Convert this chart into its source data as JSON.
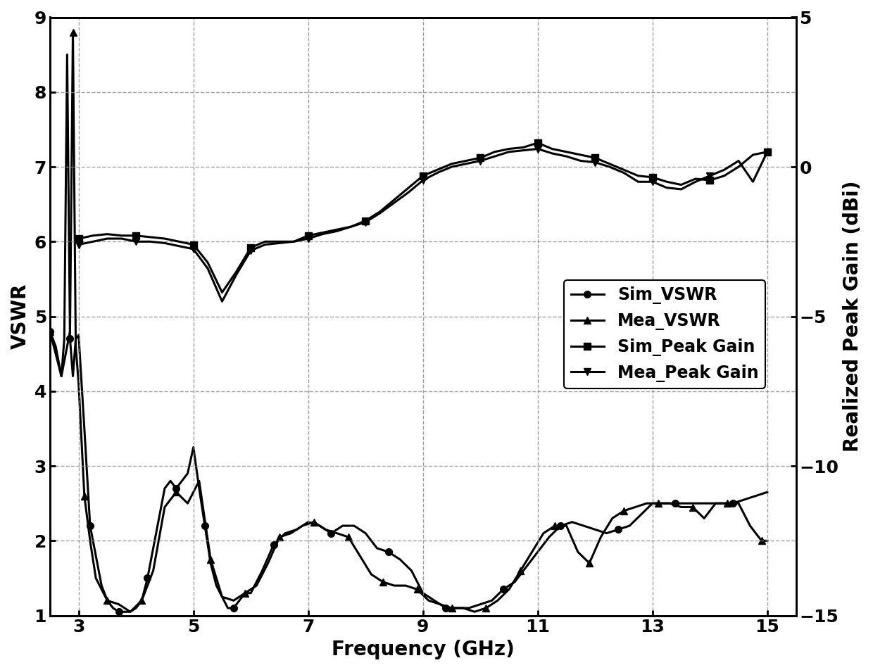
{
  "xlabel": "Frequency (GHz)",
  "ylabel_left": "VSWR",
  "ylabel_right": "Realized Peak Gain (dBi)",
  "xlim": [
    2.5,
    15.5
  ],
  "ylim_left": [
    1,
    9
  ],
  "ylim_right": [
    -15,
    5
  ],
  "yticks_left": [
    1,
    2,
    3,
    4,
    5,
    6,
    7,
    8,
    9
  ],
  "yticks_right": [
    -15,
    -10,
    -5,
    0,
    5
  ],
  "xticks": [
    3,
    5,
    7,
    9,
    11,
    13,
    15
  ],
  "background_color": "#ffffff",
  "line_color": "#000000",
  "linewidth": 2.2,
  "markersize": 7,
  "sim_vswr_freq": [
    2.5,
    2.6,
    2.7,
    2.75,
    2.8,
    2.85,
    2.9,
    2.95,
    3.0,
    3.1,
    3.2,
    3.3,
    3.4,
    3.5,
    3.6,
    3.7,
    3.8,
    3.9,
    4.0,
    4.1,
    4.2,
    4.3,
    4.4,
    4.5,
    4.6,
    4.7,
    4.8,
    4.9,
    5.0,
    5.1,
    5.2,
    5.3,
    5.4,
    5.5,
    5.6,
    5.7,
    5.8,
    5.9,
    6.0,
    6.2,
    6.4,
    6.6,
    6.8,
    7.0,
    7.2,
    7.4,
    7.6,
    7.8,
    8.0,
    8.2,
    8.4,
    8.6,
    8.8,
    9.0,
    9.2,
    9.4,
    9.6,
    9.8,
    10.0,
    10.2,
    10.4,
    10.6,
    10.8,
    11.0,
    11.2,
    11.4,
    11.6,
    11.8,
    12.0,
    12.2,
    12.4,
    12.6,
    12.8,
    13.0,
    13.2,
    13.4,
    13.6,
    13.8,
    14.0,
    14.2,
    14.4,
    14.6,
    14.8,
    15.0
  ],
  "sim_vswr_vals": [
    4.8,
    4.6,
    4.2,
    4.7,
    8.5,
    4.7,
    4.2,
    4.7,
    4.75,
    3.5,
    2.2,
    1.8,
    1.4,
    1.2,
    1.1,
    1.05,
    1.05,
    1.05,
    1.1,
    1.2,
    1.5,
    1.9,
    2.3,
    2.7,
    2.8,
    2.7,
    2.8,
    2.9,
    3.25,
    2.7,
    2.2,
    1.7,
    1.4,
    1.25,
    1.1,
    1.1,
    1.2,
    1.3,
    1.3,
    1.6,
    1.95,
    2.1,
    2.15,
    2.25,
    2.2,
    2.1,
    2.2,
    2.2,
    2.1,
    1.9,
    1.85,
    1.75,
    1.6,
    1.3,
    1.2,
    1.1,
    1.1,
    1.1,
    1.15,
    1.2,
    1.35,
    1.45,
    1.65,
    1.85,
    2.05,
    2.2,
    2.25,
    2.2,
    2.15,
    2.1,
    2.15,
    2.2,
    2.35,
    2.5,
    2.5,
    2.5,
    2.5,
    2.5,
    2.5,
    2.5,
    2.5,
    2.55,
    2.6,
    2.65
  ],
  "mea_vswr_freq": [
    2.5,
    2.7,
    2.85,
    2.9,
    2.95,
    3.0,
    3.1,
    3.2,
    3.3,
    3.5,
    3.7,
    3.9,
    4.1,
    4.3,
    4.5,
    4.7,
    4.9,
    5.1,
    5.3,
    5.5,
    5.7,
    5.9,
    6.1,
    6.3,
    6.5,
    6.7,
    6.9,
    7.1,
    7.3,
    7.5,
    7.7,
    7.9,
    8.1,
    8.3,
    8.5,
    8.7,
    8.9,
    9.1,
    9.3,
    9.5,
    9.7,
    9.9,
    10.1,
    10.3,
    10.5,
    10.7,
    10.9,
    11.1,
    11.3,
    11.5,
    11.7,
    11.9,
    12.1,
    12.3,
    12.5,
    12.7,
    12.9,
    13.1,
    13.3,
    13.5,
    13.7,
    13.9,
    14.1,
    14.3,
    14.5,
    14.7,
    14.9,
    15.0
  ],
  "mea_vswr_vals": [
    4.8,
    4.2,
    4.8,
    8.8,
    4.6,
    4.1,
    2.6,
    2.0,
    1.5,
    1.2,
    1.15,
    1.05,
    1.2,
    1.6,
    2.45,
    2.65,
    2.5,
    2.8,
    1.75,
    1.25,
    1.2,
    1.3,
    1.4,
    1.7,
    2.05,
    2.1,
    2.2,
    2.25,
    2.15,
    2.1,
    2.05,
    1.8,
    1.55,
    1.45,
    1.4,
    1.4,
    1.35,
    1.2,
    1.15,
    1.1,
    1.1,
    1.05,
    1.1,
    1.2,
    1.35,
    1.6,
    1.85,
    2.1,
    2.2,
    2.2,
    1.85,
    1.7,
    2.05,
    2.3,
    2.4,
    2.45,
    2.5,
    2.5,
    2.5,
    2.45,
    2.45,
    2.3,
    2.5,
    2.5,
    2.5,
    2.2,
    2.0,
    2.0
  ],
  "sim_gain_freq": [
    3.0,
    3.25,
    3.5,
    3.75,
    4.0,
    4.25,
    4.5,
    4.75,
    5.0,
    5.25,
    5.5,
    5.75,
    6.0,
    6.25,
    6.5,
    6.75,
    7.0,
    7.25,
    7.5,
    7.75,
    8.0,
    8.25,
    8.5,
    8.75,
    9.0,
    9.25,
    9.5,
    9.75,
    10.0,
    10.25,
    10.5,
    10.75,
    11.0,
    11.25,
    11.5,
    11.75,
    12.0,
    12.25,
    12.5,
    12.75,
    13.0,
    13.25,
    13.5,
    13.75,
    14.0,
    14.25,
    14.5,
    14.75,
    15.0
  ],
  "sim_gain_vals": [
    -2.4,
    -2.3,
    -2.25,
    -2.3,
    -2.3,
    -2.35,
    -2.4,
    -2.5,
    -2.6,
    -3.2,
    -4.2,
    -3.5,
    -2.7,
    -2.5,
    -2.5,
    -2.5,
    -2.3,
    -2.2,
    -2.1,
    -2.0,
    -1.8,
    -1.5,
    -1.1,
    -0.7,
    -0.3,
    -0.1,
    0.1,
    0.2,
    0.3,
    0.5,
    0.6,
    0.65,
    0.8,
    0.6,
    0.5,
    0.4,
    0.3,
    0.1,
    -0.1,
    -0.3,
    -0.35,
    -0.5,
    -0.6,
    -0.4,
    -0.45,
    -0.3,
    0.0,
    0.4,
    0.5
  ],
  "mea_gain_freq": [
    3.0,
    3.25,
    3.5,
    3.75,
    4.0,
    4.25,
    4.5,
    4.75,
    5.0,
    5.25,
    5.5,
    5.75,
    6.0,
    6.25,
    6.5,
    6.75,
    7.0,
    7.25,
    7.5,
    7.75,
    8.0,
    8.25,
    8.5,
    8.75,
    9.0,
    9.25,
    9.5,
    9.75,
    10.0,
    10.25,
    10.5,
    10.75,
    11.0,
    11.25,
    11.5,
    11.75,
    12.0,
    12.25,
    12.5,
    12.75,
    13.0,
    13.25,
    13.5,
    13.75,
    14.0,
    14.25,
    14.5,
    14.75,
    15.0
  ],
  "mea_gain_vals": [
    -2.6,
    -2.5,
    -2.4,
    -2.4,
    -2.5,
    -2.5,
    -2.55,
    -2.65,
    -2.75,
    -3.4,
    -4.5,
    -3.6,
    -2.8,
    -2.6,
    -2.55,
    -2.5,
    -2.4,
    -2.25,
    -2.15,
    -2.0,
    -1.85,
    -1.55,
    -1.2,
    -0.85,
    -0.45,
    -0.2,
    0.0,
    0.1,
    0.2,
    0.35,
    0.5,
    0.55,
    0.6,
    0.45,
    0.35,
    0.2,
    0.15,
    0.0,
    -0.2,
    -0.5,
    -0.5,
    -0.7,
    -0.75,
    -0.5,
    -0.3,
    -0.1,
    0.2,
    -0.5,
    0.5
  ],
  "legend_labels": [
    "Sim_VSWR",
    "Mea_VSWR",
    "Sim_Peak Gain",
    "Mea_Peak Gain"
  ],
  "fontsize_axis_label": 20,
  "fontsize_tick": 18,
  "fontsize_legend": 17
}
